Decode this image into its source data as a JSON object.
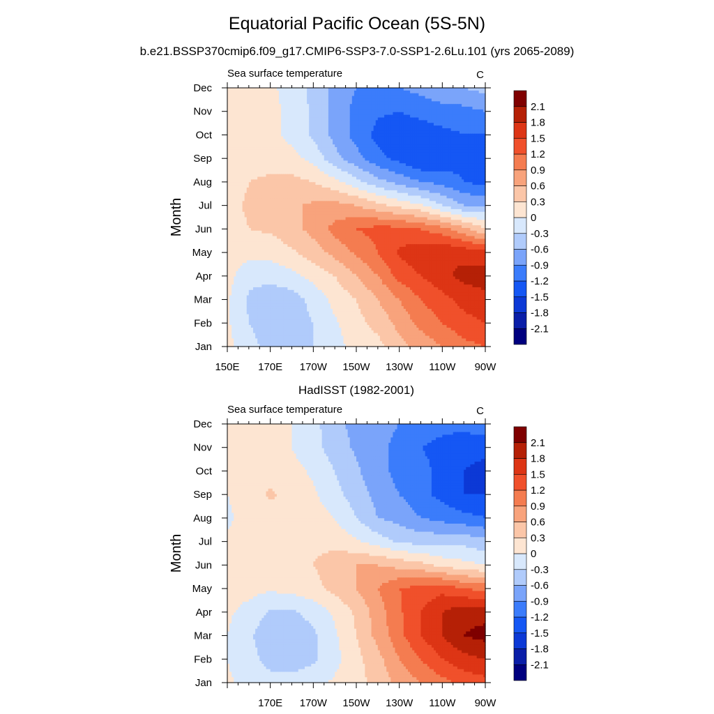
{
  "figure": {
    "title": "Equatorial Pacific Ocean (5S-5N)",
    "subtitle": "b.e21.BSSP370cmip6.f09_g17.CMIP6-SSP3-7.0-SSP1-2.6Lu.101 (yrs 2065-2089)"
  },
  "colormap": {
    "levels": [
      -2.1,
      -1.8,
      -1.5,
      -1.2,
      -0.9,
      -0.6,
      -0.3,
      0,
      0.3,
      0.6,
      0.9,
      1.2,
      1.5,
      1.8,
      2.1
    ],
    "level_labels": [
      "-2.1",
      "-1.8",
      "-1.5",
      "-1.2",
      "-0.9",
      "-0.6",
      "-0.3",
      "0",
      "0.3",
      "0.6",
      "0.9",
      "1.2",
      "1.5",
      "1.8",
      "2.1"
    ],
    "colors": [
      "#00007f",
      "#0a1ea8",
      "#0c39d6",
      "#1557f4",
      "#3b7cfb",
      "#7aa4fa",
      "#b0cbfb",
      "#d8e8fc",
      "#fde5d2",
      "#fbc6a8",
      "#f8a37c",
      "#f47c50",
      "#f0502b",
      "#dd3515",
      "#b52006",
      "#7f0000"
    ]
  },
  "chart_data": [
    {
      "type": "heatmap",
      "title": "",
      "left_label": "Sea surface temperature",
      "right_label": "C",
      "xlabel": "",
      "ylabel": "Month",
      "x_units": "degrees longitude (E, 0-360)",
      "x": [
        150,
        160,
        170,
        180,
        190,
        200,
        210,
        220,
        230,
        240,
        250,
        260,
        270
      ],
      "y": [
        "Jan",
        "Feb",
        "Mar",
        "Apr",
        "May",
        "Jun",
        "Jul",
        "Aug",
        "Sep",
        "Oct",
        "Nov",
        "Dec"
      ],
      "x_tick_values": [
        150,
        170,
        190,
        210,
        230,
        250,
        270
      ],
      "x_tick_labels": [
        "150E",
        "170E",
        "170W",
        "150W",
        "130W",
        "110W",
        "90W"
      ],
      "y_tick_labels": [
        "Jan",
        "Feb",
        "Mar",
        "Apr",
        "May",
        "Jun",
        "Jul",
        "Aug",
        "Sep",
        "Oct",
        "Nov",
        "Dec"
      ],
      "xlim": [
        150,
        270
      ],
      "z": [
        [
          0.1,
          -0.2,
          -0.4,
          -0.4,
          -0.3,
          -0.1,
          0.1,
          0.2,
          0.5,
          0.7,
          0.9,
          1.1,
          1.2
        ],
        [
          0.05,
          -0.3,
          -0.45,
          -0.45,
          -0.3,
          -0.05,
          0.2,
          0.4,
          0.7,
          1.0,
          1.2,
          1.4,
          1.5
        ],
        [
          0.05,
          -0.35,
          -0.5,
          -0.45,
          -0.2,
          0.1,
          0.3,
          0.6,
          0.9,
          1.2,
          1.4,
          1.6,
          1.7
        ],
        [
          0.1,
          -0.2,
          -0.2,
          -0.1,
          0.1,
          0.3,
          0.6,
          0.9,
          1.3,
          1.5,
          1.7,
          1.9,
          1.95
        ],
        [
          0.15,
          0.1,
          0.1,
          0.25,
          0.45,
          0.7,
          0.95,
          1.2,
          1.55,
          1.7,
          1.8,
          1.7,
          1.6
        ],
        [
          0.15,
          0.3,
          0.35,
          0.5,
          0.7,
          1.0,
          1.2,
          1.3,
          1.3,
          1.2,
          1.0,
          0.7,
          0.3
        ],
        [
          0.2,
          0.35,
          0.4,
          0.55,
          0.65,
          0.7,
          0.6,
          0.4,
          0.2,
          0.05,
          -0.3,
          -0.6,
          -0.6
        ],
        [
          0.1,
          0.3,
          0.35,
          0.4,
          0.3,
          0.1,
          -0.2,
          -0.5,
          -0.7,
          -0.9,
          -1.0,
          -1.2,
          -1.3
        ],
        [
          0.1,
          0.2,
          0.2,
          0.1,
          -0.1,
          -0.5,
          -0.8,
          -1.1,
          -1.3,
          -1.5,
          -1.4,
          -1.3,
          -1.5
        ],
        [
          0.1,
          0.15,
          0.1,
          -0.1,
          -0.35,
          -0.7,
          -1.0,
          -1.3,
          -1.4,
          -1.4,
          -1.3,
          -1.2,
          -1.2
        ],
        [
          0.15,
          0.15,
          0.1,
          -0.1,
          -0.35,
          -0.7,
          -1.0,
          -1.15,
          -1.2,
          -1.1,
          -1.0,
          -1.0,
          -0.9
        ],
        [
          0.15,
          0.15,
          0.05,
          -0.1,
          -0.4,
          -0.7,
          -0.9,
          -0.9,
          -0.9,
          -0.8,
          -0.7,
          -0.6,
          -0.5
        ]
      ]
    },
    {
      "type": "heatmap",
      "title": "HadISST (1982-2001)",
      "left_label": "Sea surface temperature",
      "right_label": "C",
      "xlabel": "",
      "ylabel": "Month",
      "x_units": "degrees longitude (E, 0-360)",
      "x": [
        150,
        160,
        170,
        180,
        190,
        200,
        210,
        220,
        230,
        240,
        250,
        260,
        270
      ],
      "y": [
        "Jan",
        "Feb",
        "Mar",
        "Apr",
        "May",
        "Jun",
        "Jul",
        "Aug",
        "Sep",
        "Oct",
        "Nov",
        "Dec"
      ],
      "x_tick_values": [
        150,
        170,
        190,
        210,
        230,
        250,
        270
      ],
      "x_tick_labels": [
        "",
        "170E",
        "170W",
        "150W",
        "130W",
        "110W",
        "90W"
      ],
      "y_tick_labels": [
        "Jan",
        "Feb",
        "Mar",
        "Apr",
        "May",
        "Jun",
        "Jul",
        "Aug",
        "Sep",
        "Oct",
        "Nov",
        "Dec"
      ],
      "xlim": [
        150,
        270
      ],
      "z": [
        [
          0.05,
          -0.1,
          -0.2,
          -0.2,
          -0.1,
          0.05,
          0.2,
          0.4,
          0.7,
          0.9,
          1.1,
          1.3,
          1.4
        ],
        [
          0.0,
          -0.2,
          -0.4,
          -0.45,
          -0.35,
          -0.1,
          0.2,
          0.5,
          0.9,
          1.2,
          1.5,
          1.7,
          1.8
        ],
        [
          0.0,
          -0.25,
          -0.5,
          -0.5,
          -0.35,
          -0.05,
          0.3,
          0.7,
          1.1,
          1.5,
          1.8,
          2.1,
          2.2
        ],
        [
          0.05,
          -0.1,
          -0.35,
          -0.35,
          -0.2,
          0.05,
          0.35,
          0.75,
          1.15,
          1.5,
          1.8,
          2.0,
          2.0
        ],
        [
          0.1,
          0.1,
          0.05,
          0.1,
          0.2,
          0.4,
          0.6,
          0.9,
          1.2,
          1.3,
          1.4,
          1.2,
          1.1
        ],
        [
          0.1,
          0.15,
          0.15,
          0.2,
          0.3,
          0.45,
          0.6,
          0.6,
          0.5,
          0.4,
          0.2,
          0.1,
          0.0
        ],
        [
          0.05,
          0.15,
          0.15,
          0.2,
          0.25,
          0.2,
          0.05,
          -0.15,
          -0.35,
          -0.4,
          -0.4,
          -0.4,
          -0.5
        ],
        [
          -0.05,
          0.1,
          0.15,
          0.2,
          0.15,
          0.0,
          -0.3,
          -0.6,
          -0.7,
          -0.9,
          -1.0,
          -1.1,
          -1.2
        ],
        [
          0.0,
          0.15,
          0.35,
          0.2,
          0.05,
          -0.2,
          -0.45,
          -0.7,
          -0.9,
          -1.1,
          -1.3,
          -1.5,
          -1.5
        ],
        [
          0.05,
          0.15,
          0.15,
          0.1,
          -0.05,
          -0.3,
          -0.55,
          -0.8,
          -1.0,
          -1.1,
          -1.3,
          -1.5,
          -1.6
        ],
        [
          0.1,
          0.15,
          0.1,
          0.0,
          -0.2,
          -0.45,
          -0.65,
          -0.8,
          -1.0,
          -1.2,
          -1.3,
          -1.4,
          -1.4
        ],
        [
          0.1,
          0.1,
          0.1,
          0.0,
          -0.2,
          -0.5,
          -0.7,
          -0.8,
          -0.9,
          -1.0,
          -1.1,
          -1.1,
          -1.0
        ]
      ]
    }
  ]
}
